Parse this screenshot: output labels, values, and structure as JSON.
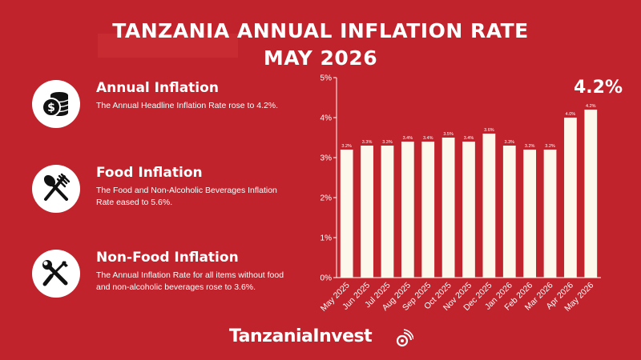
{
  "title_line1": "TANZANIA ANNUAL INFLATION RATE",
  "title_line2": "MAY 2026",
  "highlight_label": "4.2%",
  "brand": "TanzaniaInvest",
  "sections": [
    {
      "title": "Annual Inflation",
      "text": "The Annual Headline Inflation Rate rose to 4.2%.",
      "icon": "money-stack-icon"
    },
    {
      "title": "Food Inflation",
      "text": "The Food and Non-Alcoholic Beverages Inflation Rate eased to 5.6%.",
      "icon": "spoon-fork-icon"
    },
    {
      "title": "Non-Food Inflation",
      "text": "The Annual Inflation Rate for all items without food and non-alcoholic beverages rose to 3.6%.",
      "icon": "wrench-screwdriver-icon"
    }
  ],
  "colors": {
    "background": "#c1232c",
    "bar": "#fdf8ec",
    "text": "#ffffff"
  },
  "chart_data": {
    "type": "bar",
    "categories": [
      "May 2025",
      "Jun 2025",
      "Jul 2025",
      "Aug 2025",
      "Sep 2025",
      "Oct 2025",
      "Nov 2025",
      "Dec 2025",
      "Jan 2026",
      "Feb 2026",
      "Mar 2026",
      "Apr 2026",
      "May 2026"
    ],
    "values": [
      3.2,
      3.3,
      3.3,
      3.4,
      3.4,
      3.5,
      3.4,
      3.6,
      3.3,
      3.2,
      3.2,
      4.0,
      4.2
    ],
    "data_labels": [
      "3.2%",
      "3.3%",
      "3.3%",
      "3.4%",
      "3.4%",
      "3.5%",
      "3.4%",
      "3.6%",
      "3.3%",
      "3.2%",
      "3.2%",
      "4.0%",
      "4.2%"
    ],
    "yticks": [
      "0%",
      "1%",
      "2%",
      "3%",
      "4%",
      "5%"
    ],
    "ylim": [
      0,
      5
    ],
    "grid": false,
    "title": "",
    "xlabel": "",
    "ylabel": ""
  }
}
